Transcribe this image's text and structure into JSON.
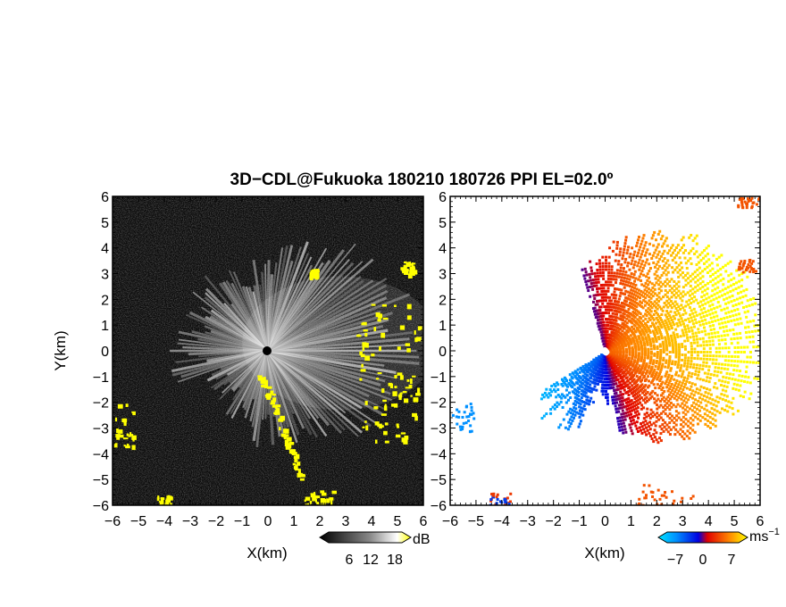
{
  "figure": {
    "title": "3D−CDL@Fukuoka 180210 180726 PPI EL=02.0º"
  },
  "chart_data": [
    {
      "type": "heatmap",
      "panel": "left",
      "variable": "reflectivity / SNR (grayscale, yellow = high)",
      "xlabel": "X(km)",
      "ylabel": "Y(km)",
      "xlim": [
        -6,
        6
      ],
      "ylim": [
        -6,
        6
      ],
      "xticks": [
        "−6",
        "−5",
        "−4",
        "−3",
        "−2",
        "−1",
        "0",
        "1",
        "2",
        "3",
        "4",
        "5",
        "6"
      ],
      "yticks": [
        "−6",
        "−5",
        "−4",
        "−3",
        "−2",
        "−1",
        "0",
        "1",
        "2",
        "3",
        "4",
        "5",
        "6"
      ],
      "colorbar": {
        "unit": "dB",
        "ticks": [
          "6",
          "12",
          "18"
        ],
        "min": 0,
        "max": 24
      },
      "description_features": {
        "radar_origin": [
          0,
          0
        ],
        "yellow_echo_regions": [
          {
            "x": [
              -0.3,
              1.3
            ],
            "y": [
              -5.0,
              -0.9
            ],
            "feature": "diagonal line SW-ward from origin"
          },
          {
            "x": [
              1.3,
              2.5
            ],
            "y": [
              -6.0,
              -5.4
            ]
          },
          {
            "x": [
              -6.0,
              -5.2
            ],
            "y": [
              -3.8,
              -2.0
            ]
          },
          {
            "x": [
              -4.3,
              -3.8
            ],
            "y": [
              -6.0,
              -5.6
            ]
          },
          {
            "x": [
              3.3,
              5.8
            ],
            "y": [
              -3.5,
              2.0
            ],
            "feature": "scattered cells, east edge"
          },
          {
            "x": [
              5.1,
              5.6
            ],
            "y": [
              3.0,
              3.5
            ]
          },
          {
            "x": [
              1.6,
              1.9
            ],
            "y": [
              2.9,
              3.2
            ]
          }
        ]
      }
    },
    {
      "type": "heatmap",
      "panel": "right",
      "variable": "Doppler velocity",
      "xlabel": "X(km)",
      "ylabel": "",
      "xlim": [
        -6,
        6
      ],
      "ylim": [
        -6,
        6
      ],
      "xticks": [
        "−6",
        "−5",
        "−4",
        "−3",
        "−2",
        "−1",
        "0",
        "1",
        "2",
        "3",
        "4",
        "5",
        "6"
      ],
      "yticks": [
        "−6",
        "−5",
        "−4",
        "−3",
        "−2",
        "−1",
        "0",
        "1",
        "2",
        "3",
        "4",
        "5",
        "6"
      ],
      "colorbar": {
        "unit": "ms",
        "unit_exponent": "−1",
        "ticks": [
          "−7",
          "0",
          "7"
        ],
        "min": -10,
        "max": 10
      },
      "description_features": {
        "radar_origin": [
          0,
          0
        ],
        "approaching_sector": {
          "azimuth_deg": [
            215,
            340
          ],
          "max_range_km": 3.7,
          "velocity": "negative (blue)"
        },
        "receding_sector": {
          "azimuth_deg": [
            345,
            165
          ],
          "max_range_km": 6.0,
          "velocity": "positive (red/orange/yellow)"
        },
        "isolated_echoes": [
          {
            "x": [
              -6.0,
              -5.1
            ],
            "y": [
              -3.2,
              -2.0
            ],
            "velocity": "negative"
          },
          {
            "x": [
              -4.5,
              -3.7
            ],
            "y": [
              -6.0,
              -5.5
            ],
            "velocity": "mixed"
          },
          {
            "x": [
              1.2,
              3.5
            ],
            "y": [
              -6.0,
              -5.1
            ],
            "velocity": "positive"
          },
          {
            "x": [
              5.1,
              5.8
            ],
            "y": [
              3.1,
              3.6
            ],
            "velocity": "positive"
          },
          {
            "x": [
              5.1,
              6.0
            ],
            "y": [
              5.6,
              6.0
            ],
            "velocity": "positive"
          }
        ]
      }
    }
  ]
}
